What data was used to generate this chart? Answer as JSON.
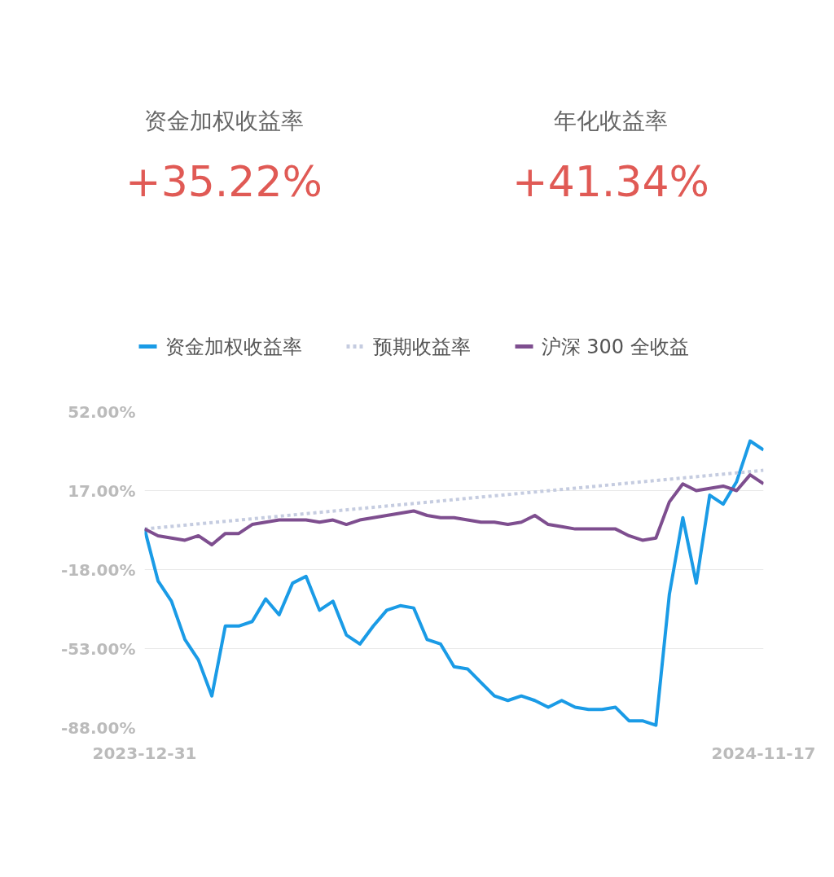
{
  "chart_data": {
    "type": "line",
    "annotations": [
      "资金加权收益率",
      "+35.22%",
      "年化收益率",
      "+41.34%"
    ],
    "x": [
      "2023-12-31",
      "2024-01-07",
      "2024-01-14",
      "2024-01-21",
      "2024-01-28",
      "2024-02-04",
      "2024-02-11",
      "2024-02-18",
      "2024-02-25",
      "2024-03-03",
      "2024-03-10",
      "2024-03-17",
      "2024-03-24",
      "2024-03-31",
      "2024-04-07",
      "2024-04-14",
      "2024-04-21",
      "2024-04-28",
      "2024-05-05",
      "2024-05-12",
      "2024-05-19",
      "2024-05-26",
      "2024-06-02",
      "2024-06-09",
      "2024-06-16",
      "2024-06-23",
      "2024-06-30",
      "2024-07-07",
      "2024-07-14",
      "2024-07-21",
      "2024-07-28",
      "2024-08-04",
      "2024-08-11",
      "2024-08-18",
      "2024-08-25",
      "2024-09-01",
      "2024-09-08",
      "2024-09-15",
      "2024-09-22",
      "2024-09-29",
      "2024-10-06",
      "2024-10-13",
      "2024-10-20",
      "2024-10-27",
      "2024-11-03",
      "2024-11-10",
      "2024-11-17"
    ],
    "series": [
      {
        "name": "资金加权收益率",
        "color": "#1a9be6",
        "values": [
          0,
          -23,
          -32,
          -49,
          -58,
          -74,
          -43,
          -43,
          -41,
          -31,
          -38,
          -24,
          -21,
          -36,
          -32,
          -47,
          -51,
          -43,
          -36,
          -34,
          -35,
          -49,
          -51,
          -61,
          -62,
          -68,
          -74,
          -76,
          -74,
          -76,
          -79,
          -76,
          -79,
          -80,
          -80,
          -79,
          -85,
          -85,
          -87,
          -29,
          5,
          -24,
          15,
          11,
          21,
          39,
          35
        ]
      },
      {
        "name": "预期收益率",
        "color": "#c5cce0",
        "line_style": "dashed",
        "x": [
          "2023-12-31",
          "2024-11-17"
        ],
        "values": [
          0,
          26
        ]
      },
      {
        "name": "沪深 300 全收益",
        "color": "#7e4e8f",
        "values": [
          0,
          -3,
          -4,
          -5,
          -3,
          -7,
          -2,
          -2,
          2,
          3,
          4,
          4,
          4,
          3,
          4,
          2,
          4,
          5,
          6,
          7,
          8,
          6,
          5,
          5,
          4,
          3,
          3,
          2,
          3,
          6,
          2,
          1,
          0,
          0,
          0,
          0,
          -3,
          -5,
          -4,
          12,
          20,
          17,
          18,
          19,
          17,
          24,
          20
        ]
      }
    ],
    "xlim": [
      "2023-12-31",
      "2024-11-17"
    ],
    "xticks": [
      "2023-12-31",
      "2024-11-17"
    ],
    "ylim": [
      -88,
      52
    ],
    "yticks": [
      {
        "value": 52,
        "label": "52.00%"
      },
      {
        "value": 17,
        "label": "17.00%"
      },
      {
        "value": -18,
        "label": "-18.00%"
      },
      {
        "value": -53,
        "label": "-53.00%"
      },
      {
        "value": -88,
        "label": "-88.00%"
      }
    ],
    "grid": "y",
    "legend": "top",
    "line_style": "solid",
    "marker": "none"
  }
}
